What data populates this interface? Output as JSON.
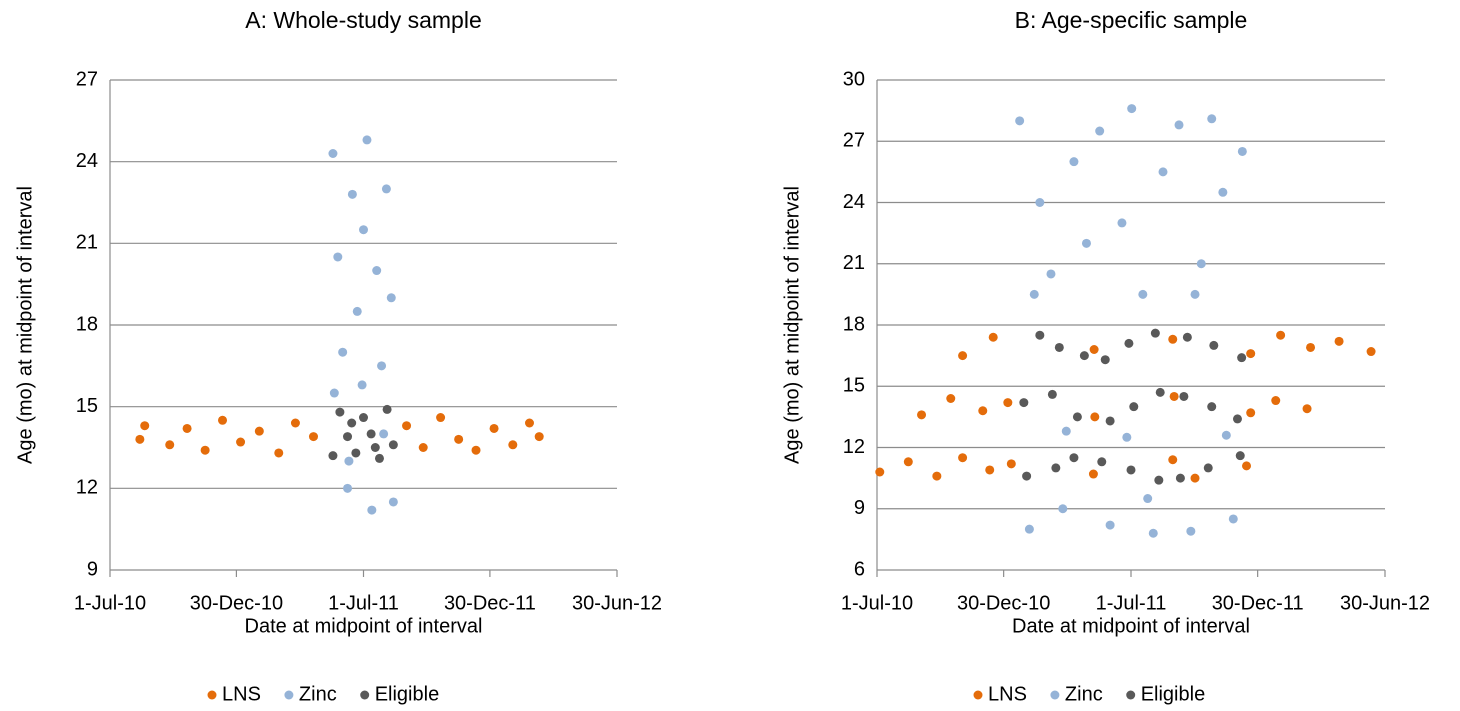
{
  "chart_data": [
    {
      "type": "scatter",
      "title": "A: Whole-study sample",
      "x_label": "Date at midpoint of interval",
      "y_label": "Age (mo) at midpoint of interval",
      "xlim": [
        "2010-07-01",
        "2012-06-30"
      ],
      "xticks": [
        {
          "value": "2010-07-01",
          "label": "1-Jul-10"
        },
        {
          "value": "2010-12-30",
          "label": "30-Dec-10"
        },
        {
          "value": "2011-07-01",
          "label": "1-Jul-11"
        },
        {
          "value": "2011-12-30",
          "label": "30-Dec-11"
        },
        {
          "value": "2012-06-30",
          "label": "30-Jun-12"
        }
      ],
      "ylim": [
        9,
        27
      ],
      "yticks": [
        9,
        12,
        15,
        18,
        21,
        24,
        27
      ],
      "grid": true,
      "series": [
        {
          "name": "LNS",
          "color": "#e46c0a",
          "x": [
            "2010-08-13",
            "2010-08-20",
            "2010-09-25",
            "2010-10-20",
            "2010-11-15",
            "2010-12-10",
            "2011-01-05",
            "2011-02-01",
            "2011-03-01",
            "2011-03-25",
            "2011-04-20",
            "2011-09-01",
            "2011-09-25",
            "2011-10-20",
            "2011-11-15",
            "2011-12-10",
            "2012-01-05",
            "2012-02-01",
            "2012-02-25",
            "2012-03-10"
          ],
          "values": [
            13.8,
            14.3,
            13.6,
            14.2,
            13.4,
            14.5,
            13.7,
            14.1,
            13.3,
            14.4,
            13.9,
            14.3,
            13.5,
            14.6,
            13.8,
            13.4,
            14.2,
            13.6,
            14.4,
            13.9
          ]
        },
        {
          "name": "Zinc",
          "color": "#95b3d7",
          "x": [
            "2011-05-18",
            "2011-05-25",
            "2011-06-01",
            "2011-06-08",
            "2011-06-15",
            "2011-06-22",
            "2011-06-29",
            "2011-07-06",
            "2011-07-13",
            "2011-07-20",
            "2011-07-27",
            "2011-08-03",
            "2011-08-10",
            "2011-08-13",
            "2011-05-20",
            "2011-07-01",
            "2011-06-10",
            "2011-07-30"
          ],
          "values": [
            24.3,
            20.5,
            17,
            12,
            22.8,
            18.5,
            15.8,
            24.8,
            11.2,
            20,
            16.5,
            23,
            19,
            11.5,
            15.5,
            21.5,
            13,
            14
          ]
        },
        {
          "name": "Eligible",
          "color": "#595959",
          "x": [
            "2011-05-18",
            "2011-05-28",
            "2011-06-08",
            "2011-06-20",
            "2011-07-01",
            "2011-07-12",
            "2011-07-24",
            "2011-08-04",
            "2011-08-13",
            "2011-06-14",
            "2011-07-18"
          ],
          "values": [
            13.2,
            14.8,
            13.9,
            13.3,
            14.6,
            14,
            13.1,
            14.9,
            13.6,
            14.4,
            13.5
          ]
        }
      ]
    },
    {
      "type": "scatter",
      "title": "B: Age-specific sample",
      "x_label": "Date at midpoint of interval",
      "y_label": "Age (mo) at midpoint of interval",
      "xlim": [
        "2010-07-01",
        "2012-06-30"
      ],
      "xticks": [
        {
          "value": "2010-07-01",
          "label": "1-Jul-10"
        },
        {
          "value": "2010-12-30",
          "label": "30-Dec-10"
        },
        {
          "value": "2011-07-01",
          "label": "1-Jul-11"
        },
        {
          "value": "2011-12-30",
          "label": "30-Dec-11"
        },
        {
          "value": "2012-06-30",
          "label": "30-Jun-12"
        }
      ],
      "ylim": [
        6,
        30
      ],
      "yticks": [
        6,
        9,
        12,
        15,
        18,
        21,
        24,
        27,
        30
      ],
      "grid": true,
      "series": [
        {
          "name": "LNS",
          "color": "#e46c0a",
          "x": [
            "2010-07-05",
            "2010-08-15",
            "2010-09-25",
            "2010-11-01",
            "2010-12-10",
            "2011-01-10",
            "2011-05-08",
            "2011-08-30",
            "2011-10-01",
            "2011-12-14",
            "2010-09-03",
            "2010-10-15",
            "2010-11-30",
            "2011-01-05",
            "2011-05-10",
            "2011-09-01",
            "2011-12-20",
            "2012-01-25",
            "2012-03-10",
            "2010-11-01",
            "2010-12-15",
            "2011-05-09",
            "2011-08-30",
            "2011-12-20",
            "2012-02-01",
            "2012-03-15",
            "2012-04-25",
            "2012-06-10"
          ],
          "values": [
            10.8,
            11.3,
            10.6,
            11.5,
            10.9,
            11.2,
            10.7,
            11.4,
            10.5,
            11.1,
            13.6,
            14.4,
            13.8,
            14.2,
            13.5,
            14.5,
            13.7,
            14.3,
            13.9,
            16.5,
            17.4,
            16.8,
            17.3,
            16.6,
            17.5,
            16.9,
            17.2,
            16.7
          ]
        },
        {
          "name": "Zinc",
          "color": "#95b3d7",
          "x": [
            "2011-01-22",
            "2011-02-05",
            "2011-02-20",
            "2011-03-08",
            "2011-03-25",
            "2011-04-10",
            "2011-04-28",
            "2011-02-12",
            "2011-03-30",
            "2011-05-17",
            "2011-06-01",
            "2011-06-18",
            "2011-07-02",
            "2011-07-18",
            "2011-08-02",
            "2011-08-16",
            "2011-06-25",
            "2011-07-25",
            "2011-09-08",
            "2011-09-25",
            "2011-10-10",
            "2011-10-25",
            "2011-11-10",
            "2011-11-25",
            "2011-12-08",
            "2011-10-01",
            "2011-11-15"
          ],
          "values": [
            28,
            8,
            24,
            20.5,
            9,
            26,
            22,
            19.5,
            12.8,
            27.5,
            8.2,
            23,
            28.6,
            19.5,
            7.8,
            25.5,
            12.5,
            9.5,
            27.8,
            7.9,
            21,
            28.1,
            24.5,
            8.5,
            26.5,
            19.5,
            12.6
          ]
        },
        {
          "name": "Eligible",
          "color": "#595959",
          "x": [
            "2011-02-01",
            "2011-04-10",
            "2011-01-28",
            "2011-04-15",
            "2011-02-20",
            "2011-04-25",
            "2011-03-15",
            "2011-03-10",
            "2011-03-20",
            "2011-05-20",
            "2011-08-10",
            "2011-06-01",
            "2011-08-12",
            "2011-05-25",
            "2011-08-05",
            "2011-07-01",
            "2011-07-05",
            "2011-06-28",
            "2011-09-10",
            "2011-12-05",
            "2011-09-15",
            "2011-12-01",
            "2011-09-20",
            "2011-12-07",
            "2011-10-20",
            "2011-10-25",
            "2011-10-28"
          ],
          "values": [
            10.6,
            11.5,
            14.2,
            13.5,
            17.5,
            16.5,
            11,
            14.6,
            16.9,
            11.3,
            10.4,
            13.3,
            14.7,
            16.3,
            17.6,
            10.9,
            14,
            17.1,
            10.5,
            11.6,
            14.5,
            13.4,
            17.4,
            16.4,
            11,
            14,
            17
          ]
        }
      ]
    }
  ]
}
